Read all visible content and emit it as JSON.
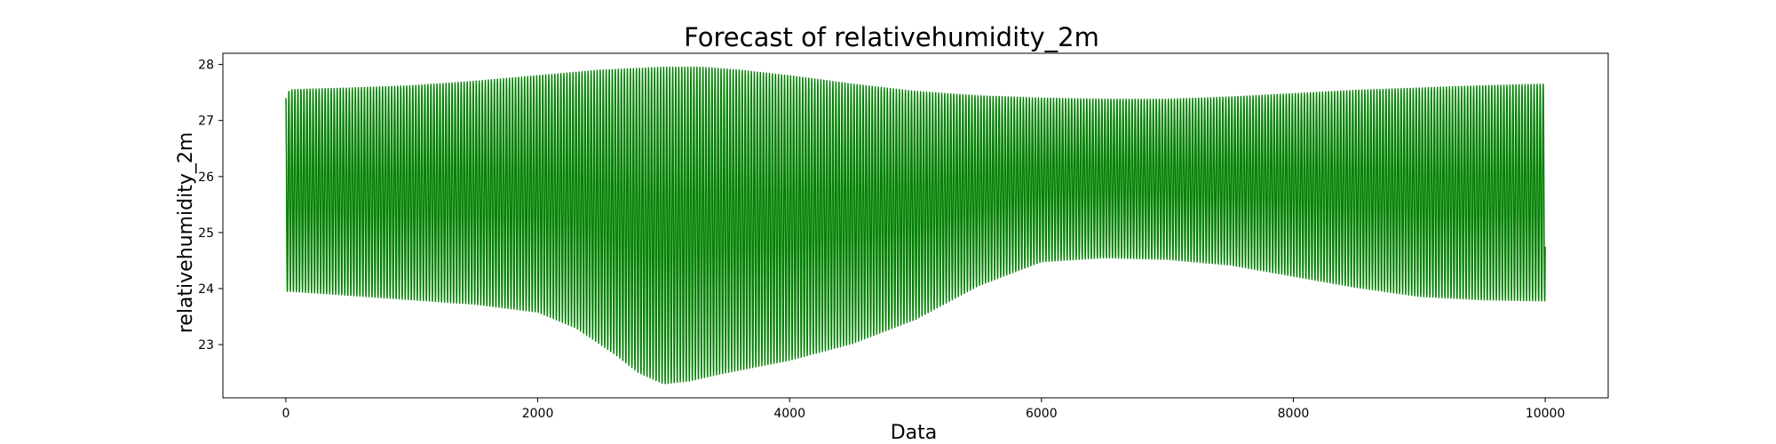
{
  "chart_data": {
    "type": "line",
    "title": "Forecast of relativehumidity_2m",
    "xlabel": "Data",
    "ylabel": "relativehumidity_2m",
    "xlim": [
      -500,
      10500
    ],
    "ylim": [
      22.05,
      28.2
    ],
    "x_ticks": [
      0,
      2000,
      4000,
      6000,
      8000,
      10000
    ],
    "x_tick_labels": [
      "0",
      "2000",
      "4000",
      "6000",
      "8000",
      "10000"
    ],
    "y_ticks": [
      23,
      24,
      25,
      26,
      27,
      28
    ],
    "y_tick_labels": [
      "23",
      "24",
      "25",
      "26",
      "27",
      "28"
    ],
    "grid": false,
    "series": [
      {
        "color": "#008000",
        "oscillation_period": 24,
        "x_range": [
          0,
          10000
        ],
        "upper_envelope": {
          "x": [
            0,
            10,
            50,
            500,
            1000,
            1500,
            2000,
            2500,
            3000,
            3300,
            3600,
            4000,
            4500,
            5000,
            5500,
            6000,
            6500,
            7000,
            7500,
            8000,
            8500,
            9000,
            9500,
            10000
          ],
          "y": [
            27.4,
            27.5,
            27.55,
            27.58,
            27.62,
            27.7,
            27.8,
            27.9,
            27.95,
            27.95,
            27.9,
            27.8,
            27.65,
            27.52,
            27.44,
            27.4,
            27.38,
            27.38,
            27.42,
            27.48,
            27.54,
            27.58,
            27.62,
            27.65
          ]
        },
        "lower_envelope": {
          "x": [
            0,
            10,
            50,
            500,
            1000,
            1500,
            2000,
            2300,
            2600,
            2800,
            3000,
            3200,
            3500,
            4000,
            4500,
            5000,
            5500,
            6000,
            6500,
            7000,
            7500,
            8000,
            8500,
            9000,
            9500,
            10000
          ],
          "y": [
            23.4,
            23.95,
            23.95,
            23.88,
            23.8,
            23.72,
            23.58,
            23.3,
            22.85,
            22.5,
            22.3,
            22.35,
            22.5,
            22.72,
            23.02,
            23.45,
            24.05,
            24.48,
            24.55,
            24.52,
            24.42,
            24.22,
            24.02,
            23.86,
            23.8,
            23.78
          ]
        }
      }
    ]
  }
}
